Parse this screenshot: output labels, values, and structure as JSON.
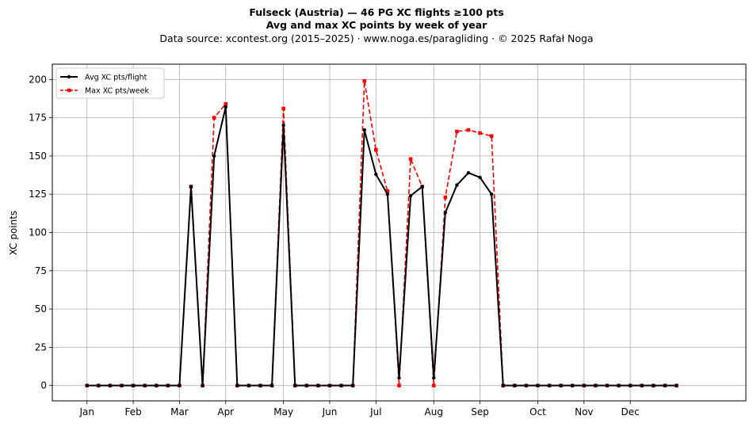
{
  "header": {
    "title": "Fulseck (Austria)  —  46 PG XC flights ≥100 pts",
    "subtitle": "Avg and max XC points by week of year",
    "source": "Data source: xcontest.org (2015–2025)  ·  www.noga.es/paragliding  ·  © 2025 Rafał Noga"
  },
  "chart_data": {
    "type": "line",
    "title": "Fulseck (Austria)  —  46 PG XC flights ≥100 pts",
    "subtitle": "Avg and max XC points by week of year",
    "xlabel": "",
    "ylabel": "XC points",
    "xlim": [
      -3,
      57
    ],
    "ylim": [
      -10,
      210
    ],
    "grid": true,
    "legend_position": "top-left",
    "x_ticks": [
      {
        "value": 0,
        "label": "Jan"
      },
      {
        "value": 4,
        "label": "Feb"
      },
      {
        "value": 8,
        "label": "Mar"
      },
      {
        "value": 12,
        "label": "Apr"
      },
      {
        "value": 17,
        "label": "May"
      },
      {
        "value": 21,
        "label": "Jun"
      },
      {
        "value": 25,
        "label": "Jul"
      },
      {
        "value": 30,
        "label": "Aug"
      },
      {
        "value": 34,
        "label": "Sep"
      },
      {
        "value": 39,
        "label": "Oct"
      },
      {
        "value": 43,
        "label": "Nov"
      },
      {
        "value": 47,
        "label": "Dec"
      }
    ],
    "y_ticks": [
      0,
      25,
      50,
      75,
      100,
      125,
      150,
      175,
      200
    ],
    "x": [
      0,
      1,
      2,
      3,
      4,
      5,
      6,
      7,
      8,
      9,
      10,
      11,
      12,
      13,
      14,
      15,
      16,
      17,
      18,
      19,
      20,
      21,
      22,
      23,
      24,
      25,
      26,
      27,
      28,
      29,
      30,
      31,
      32,
      33,
      34,
      35,
      36,
      37,
      38,
      39,
      40,
      41,
      42,
      43,
      44,
      45,
      46,
      47,
      48,
      49,
      50,
      51
    ],
    "series": [
      {
        "name": "Avg XC pts/flight",
        "color": "#000000",
        "style": "solid",
        "marker": "circle",
        "values": [
          0,
          0,
          0,
          0,
          0,
          0,
          0,
          0,
          0,
          130,
          0,
          150,
          182,
          0,
          0,
          0,
          0,
          170,
          0,
          0,
          0,
          0,
          0,
          0,
          167,
          138,
          125,
          5,
          124,
          130,
          5,
          113,
          131,
          139,
          136,
          125,
          0,
          0,
          0,
          0,
          0,
          0,
          0,
          0,
          0,
          0,
          0,
          0,
          0,
          0,
          0,
          0
        ]
      },
      {
        "name": "Max XC pts/week",
        "color": "#ff0000",
        "style": "dashed",
        "marker": "square",
        "values": [
          0,
          0,
          0,
          0,
          0,
          0,
          0,
          0,
          0,
          130,
          0,
          175,
          184,
          0,
          0,
          0,
          0,
          181,
          0,
          0,
          0,
          0,
          0,
          0,
          199,
          154,
          127,
          0,
          148,
          130,
          0,
          123,
          166,
          167,
          165,
          163,
          0,
          0,
          0,
          0,
          0,
          0,
          0,
          0,
          0,
          0,
          0,
          0,
          0,
          0,
          0,
          0
        ]
      }
    ]
  }
}
